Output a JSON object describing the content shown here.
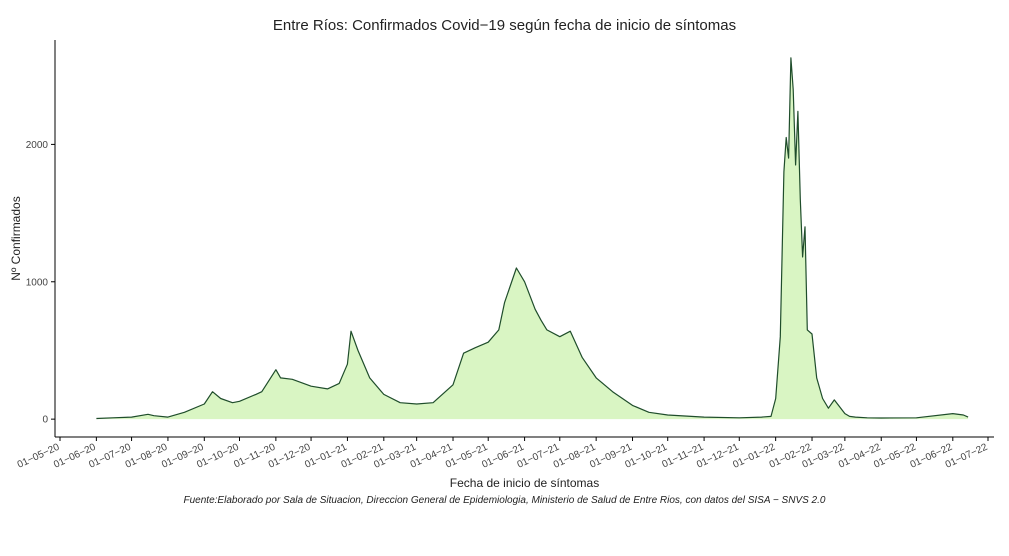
{
  "chart_data": {
    "type": "area",
    "title": "Entre Ríos: Confirmados Covid−19 según fecha de inicio de síntomas",
    "xlabel": "Fecha de inicio de síntomas",
    "ylabel": "Nº Confirmados",
    "caption": "Fuente:Elaborado por Sala de Situacion, Direccion General de Epidemiologia, Ministerio de Salud de Entre Rios, con datos del SISA − SNVS 2.0",
    "x_tick_labels": [
      "01−05−20",
      "01−06−20",
      "01−07−20",
      "01−08−20",
      "01−09−20",
      "01−10−20",
      "01−11−20",
      "01−12−20",
      "01−01−21",
      "01−02−21",
      "01−03−21",
      "01−04−21",
      "01−05−21",
      "01−06−21",
      "01−07−21",
      "01−08−21",
      "01−09−21",
      "01−10−21",
      "01−11−21",
      "01−12−21",
      "01−01−22",
      "01−02−22",
      "01−03−22",
      "01−04−22",
      "01−05−22",
      "01−06−22",
      "01−07−22"
    ],
    "y_ticks": [
      0,
      1000,
      2000
    ],
    "ylim": [
      -130,
      2760
    ],
    "grid": false,
    "legend": "none",
    "colors": {
      "line": "#1f4d2b",
      "fill": "#d9f5c3"
    },
    "x": [
      "2020-06-01",
      "2020-06-15",
      "2020-07-01",
      "2020-07-15",
      "2020-07-20",
      "2020-08-01",
      "2020-08-15",
      "2020-09-01",
      "2020-09-08",
      "2020-09-15",
      "2020-09-25",
      "2020-10-01",
      "2020-10-15",
      "2020-10-20",
      "2020-11-01",
      "2020-11-05",
      "2020-11-15",
      "2020-12-01",
      "2020-12-15",
      "2020-12-25",
      "2021-01-01",
      "2021-01-04",
      "2021-01-10",
      "2021-01-20",
      "2021-02-01",
      "2021-02-15",
      "2021-03-01",
      "2021-03-15",
      "2021-04-01",
      "2021-04-10",
      "2021-04-20",
      "2021-05-01",
      "2021-05-10",
      "2021-05-15",
      "2021-05-25",
      "2021-06-01",
      "2021-06-10",
      "2021-06-15",
      "2021-06-20",
      "2021-07-01",
      "2021-07-10",
      "2021-07-20",
      "2021-08-01",
      "2021-08-15",
      "2021-09-01",
      "2021-09-15",
      "2021-10-01",
      "2021-11-01",
      "2021-12-01",
      "2021-12-20",
      "2021-12-28",
      "2022-01-01",
      "2022-01-05",
      "2022-01-08",
      "2022-01-10",
      "2022-01-12",
      "2022-01-14",
      "2022-01-16",
      "2022-01-18",
      "2022-01-20",
      "2022-01-22",
      "2022-01-24",
      "2022-01-26",
      "2022-01-28",
      "2022-02-01",
      "2022-02-05",
      "2022-02-10",
      "2022-02-15",
      "2022-02-20",
      "2022-03-01",
      "2022-03-05",
      "2022-03-10",
      "2022-03-20",
      "2022-04-01",
      "2022-05-01",
      "2022-06-01",
      "2022-06-10",
      "2022-06-14"
    ],
    "values": [
      5,
      10,
      15,
      35,
      25,
      15,
      50,
      110,
      200,
      150,
      120,
      130,
      180,
      200,
      360,
      300,
      290,
      240,
      220,
      260,
      400,
      640,
      500,
      300,
      180,
      120,
      110,
      120,
      250,
      480,
      520,
      560,
      650,
      850,
      1100,
      1000,
      800,
      720,
      650,
      600,
      640,
      450,
      300,
      200,
      100,
      50,
      30,
      15,
      10,
      15,
      20,
      150,
      600,
      1800,
      2050,
      1900,
      2630,
      2400,
      1850,
      2240,
      1600,
      1180,
      1400,
      650,
      620,
      300,
      150,
      80,
      140,
      40,
      20,
      15,
      10,
      8,
      10,
      40,
      30,
      15
    ]
  }
}
